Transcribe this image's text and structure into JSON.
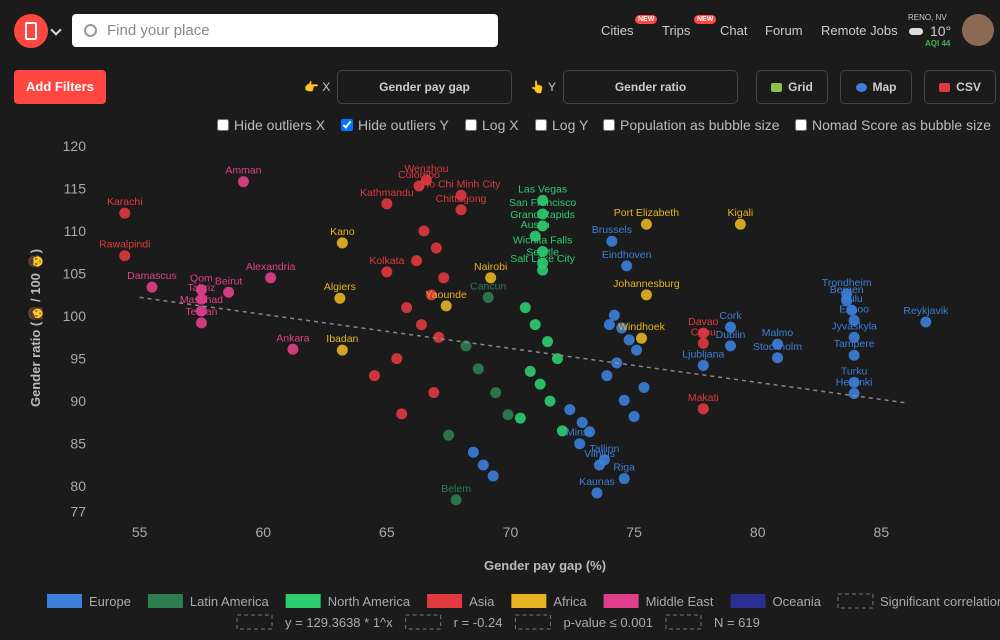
{
  "header": {
    "search_placeholder": "Find your place",
    "nav": [
      {
        "label": "Cities",
        "badge": "NEW"
      },
      {
        "label": "Trips",
        "badge": "NEW"
      },
      {
        "label": "Chat"
      },
      {
        "label": "Forum"
      },
      {
        "label": "Remote Jobs"
      }
    ],
    "weather": {
      "location": "RENO, NV",
      "temperature": "10°",
      "aqi": "AQI 44"
    }
  },
  "controls": {
    "add_filters": "Add Filters",
    "x_label": "👉 X",
    "x_value": "Gender pay gap",
    "y_label": "👆 Y",
    "y_value": "Gender ratio",
    "buttons": [
      "Grid",
      "Map",
      "CSV"
    ],
    "checkboxes": [
      {
        "label": "Hide outliers X",
        "checked": false
      },
      {
        "label": "Hide outliers Y",
        "checked": true
      },
      {
        "label": "Log X",
        "checked": false
      },
      {
        "label": "Log Y",
        "checked": false
      },
      {
        "label": "Population as bubble size",
        "checked": false
      },
      {
        "label": "Nomad Score as bubble size",
        "checked": false
      }
    ]
  },
  "chart_data": {
    "type": "scatter",
    "x_label": "Gender pay gap (%)",
    "y_label": "Gender ratio (👩 / 100 👨)",
    "xlim": [
      53.6,
      89.8
    ],
    "ylim": [
      76.5,
      120.7
    ],
    "xticks": [
      55,
      60,
      65,
      70,
      75,
      80,
      85
    ],
    "yticks": [
      77,
      80,
      85,
      90,
      95,
      100,
      105,
      110,
      115,
      120
    ],
    "series": [
      {
        "name": "Europe",
        "color": "#3d7fd9",
        "x": [
          74.1,
          74.7,
          83.6,
          83.6,
          83.8,
          83.9,
          86.8,
          78.9,
          83.9,
          78.9,
          80.8,
          80.8,
          83.9,
          83.9,
          83.9,
          77.8,
          74.6,
          73.5,
          73.6,
          73.8,
          72.8,
          74.2,
          74.5,
          74.8,
          75.1,
          74.3,
          73.9,
          75.4,
          74.6,
          72.4,
          72.9,
          73.2,
          75.0,
          74.0,
          68.5,
          68.9,
          69.3
        ],
        "values": [
          108.8,
          105.9,
          102.6,
          101.8,
          100.7,
          99.5,
          99.3,
          98.7,
          97.5,
          96.5,
          96.7,
          95.1,
          95.4,
          92.2,
          90.9,
          94.2,
          80.9,
          79.2,
          82.5,
          83.1,
          85.0,
          100.1,
          98.6,
          97.2,
          96.0,
          94.5,
          93.0,
          91.6,
          90.1,
          89.0,
          87.5,
          86.4,
          88.2,
          99.0,
          84.0,
          82.5,
          81.2
        ],
        "labels": [
          "Brussels",
          "Eindhoven",
          "Trondheim",
          "Bergen",
          "Oulu",
          "Espoo",
          "Reykjavik",
          "Cork",
          "Jyvaskyla",
          "Dublin",
          "Malmo",
          "Stockholm",
          "Tampere",
          "Turku",
          "Helsinki",
          "Ljubljana",
          "Riga",
          "Kaunas",
          "Vilnius",
          "Tallinn",
          "Minsk",
          null,
          null,
          null,
          null,
          null,
          null,
          null,
          null,
          null,
          null,
          null,
          null,
          null,
          null,
          null,
          null
        ]
      },
      {
        "name": "Latin America",
        "color": "#2e7d4f",
        "x": [
          69.1,
          67.8,
          68.2,
          68.7,
          69.4,
          69.9,
          67.5
        ],
        "values": [
          102.2,
          78.4,
          96.5,
          93.8,
          91.0,
          88.4,
          86.0
        ],
        "labels": [
          "Cancun",
          "Belem",
          null,
          null,
          null,
          null,
          null
        ]
      },
      {
        "name": "North America",
        "color": "#2ecc71",
        "x": [
          71.3,
          71.3,
          71.3,
          71.0,
          71.3,
          71.3,
          71.3,
          70.6,
          71.0,
          71.5,
          71.9,
          70.8,
          71.2,
          71.6,
          70.4,
          72.1
        ],
        "values": [
          113.6,
          112.0,
          110.6,
          109.4,
          107.6,
          106.2,
          105.4,
          101.0,
          99.0,
          97.0,
          95.0,
          93.5,
          92.0,
          90.0,
          88.0,
          86.5
        ],
        "labels": [
          "Las Vegas",
          "San Francisco",
          "Grand Rapids",
          "Austin",
          "Wichita Falls",
          "Seattle",
          "Salt Lake City",
          null,
          null,
          null,
          null,
          null,
          null,
          null,
          null,
          null
        ]
      },
      {
        "name": "Asia",
        "color": "#e0393e",
        "x": [
          54.4,
          54.4,
          65.0,
          66.6,
          66.3,
          68.0,
          68.0,
          65.0,
          77.8,
          77.8,
          77.8,
          66.5,
          67.0,
          66.2,
          67.3,
          66.8,
          65.8,
          66.4,
          67.1,
          65.4,
          64.5,
          66.9,
          65.6
        ],
        "values": [
          112.1,
          107.1,
          113.2,
          116.0,
          115.3,
          114.2,
          112.5,
          105.2,
          89.1,
          98.0,
          96.8,
          110.0,
          108.0,
          106.5,
          104.5,
          102.5,
          101.0,
          99.0,
          97.5,
          95.0,
          93.0,
          91.0,
          88.5
        ],
        "labels": [
          "Karachi",
          "Rawalpindi",
          "Kathmandu",
          "Wenzhou",
          "Colombo",
          "Ho Chi Minh City",
          "Chittagong",
          "Kolkata",
          "Makati",
          "Davao",
          "Cebu",
          null,
          null,
          null,
          null,
          null,
          null,
          null,
          null,
          null,
          null,
          null,
          null
        ]
      },
      {
        "name": "Africa",
        "color": "#e6b422",
        "x": [
          63.2,
          79.3,
          63.1,
          63.2,
          69.2,
          75.5,
          75.3,
          75.5,
          67.4
        ],
        "values": [
          108.6,
          110.8,
          102.1,
          96.0,
          104.5,
          102.5,
          97.4,
          110.8,
          101.2
        ],
        "labels": [
          "Kano",
          "Kigali",
          "Algiers",
          "Ibadan",
          "Nairobi",
          "Johannesburg",
          "Windhoek",
          "Port Elizabeth",
          "Yaounde"
        ]
      },
      {
        "name": "Middle East",
        "color": "#e0408a",
        "x": [
          59.2,
          55.5,
          57.5,
          58.6,
          57.5,
          57.5,
          57.5,
          60.3,
          61.2
        ],
        "values": [
          115.8,
          103.4,
          103.1,
          102.8,
          102.0,
          100.6,
          99.2,
          104.5,
          96.1
        ],
        "labels": [
          "Amman",
          "Damascus",
          "Qom",
          "Beirut",
          "Tabriz",
          "Mashhad",
          "Tehran",
          "Alexandria",
          "Ankara"
        ]
      },
      {
        "name": "Oceania",
        "color": "#2a2f8f",
        "x": [],
        "values": [],
        "labels": []
      }
    ],
    "trendline": {
      "name": "Significant correlation:",
      "x": [
        55,
        86
      ],
      "values": [
        102.2,
        89.8
      ]
    },
    "stats": [
      "y = 129.3638 * 1^x",
      "r = -0.24",
      "p-value ≤ 0.001",
      "N = 619"
    ]
  }
}
